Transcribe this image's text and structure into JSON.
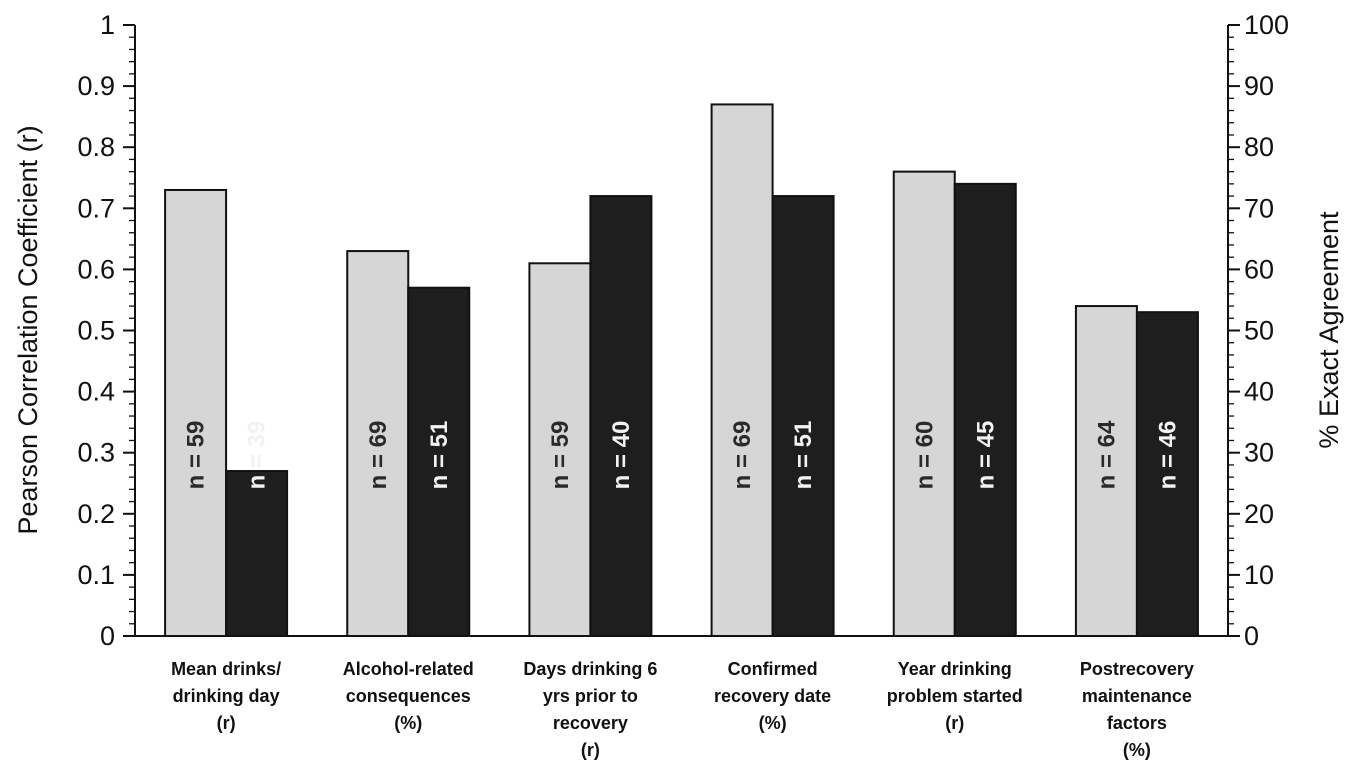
{
  "chart_data": {
    "type": "bar",
    "title": "",
    "ylabel_left": "Pearson Correlation Coefficient (r)",
    "ylabel_right": "% Exact Agreement",
    "ylim_left": [
      0,
      1
    ],
    "ylim_right": [
      0,
      100
    ],
    "left_ticks": [
      "0",
      "0.1",
      "0.2",
      "0.3",
      "0.4",
      "0.5",
      "0.6",
      "0.7",
      "0.8",
      "0.9",
      "1"
    ],
    "right_ticks": [
      "0",
      "10",
      "20",
      "30",
      "40",
      "50",
      "60",
      "70",
      "80",
      "90",
      "100"
    ],
    "grid": false,
    "categories": [
      [
        "Mean drinks/",
        "drinking day",
        "(r)"
      ],
      [
        "Alcohol-related",
        "consequences",
        "(%)"
      ],
      [
        "Days drinking 6",
        "yrs prior to",
        "recovery",
        "(r)"
      ],
      [
        "Confirmed",
        "recovery date",
        "(%)"
      ],
      [
        "Year drinking",
        "problem started",
        "(r)"
      ],
      [
        "Postrecovery",
        "maintenance",
        "factors",
        "(%)"
      ]
    ],
    "series": [
      {
        "color": "#d6d6d6",
        "values": [
          0.73,
          0.63,
          0.61,
          0.87,
          0.76,
          0.54
        ],
        "n_labels": [
          "n = 59",
          "n = 69",
          "n = 59",
          "n = 69",
          "n = 60",
          "n = 64"
        ]
      },
      {
        "color": "#1e1e1e",
        "values": [
          0.27,
          0.57,
          0.72,
          0.72,
          0.74,
          0.53
        ],
        "n_labels": [
          "n = 39",
          "n = 51",
          "n = 40",
          "n = 51",
          "n = 45",
          "n = 46"
        ]
      }
    ]
  }
}
